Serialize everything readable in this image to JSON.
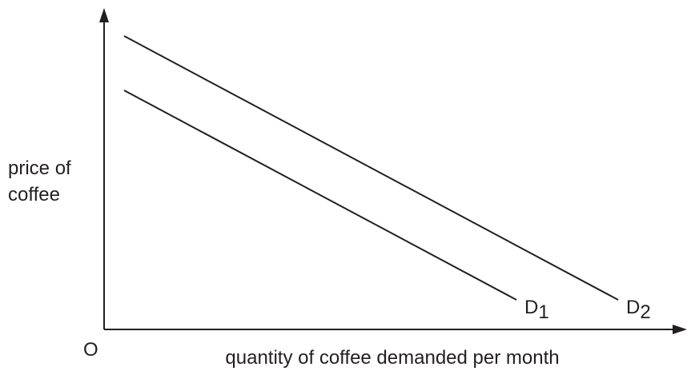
{
  "axes": {
    "y_label": [
      "price of",
      "coffee"
    ],
    "x_label": "quantity of coffee demanded per month",
    "origin": "O"
  },
  "curves": [
    {
      "label": "D",
      "subscript": "1"
    },
    {
      "label": "D",
      "subscript": "2"
    }
  ]
}
